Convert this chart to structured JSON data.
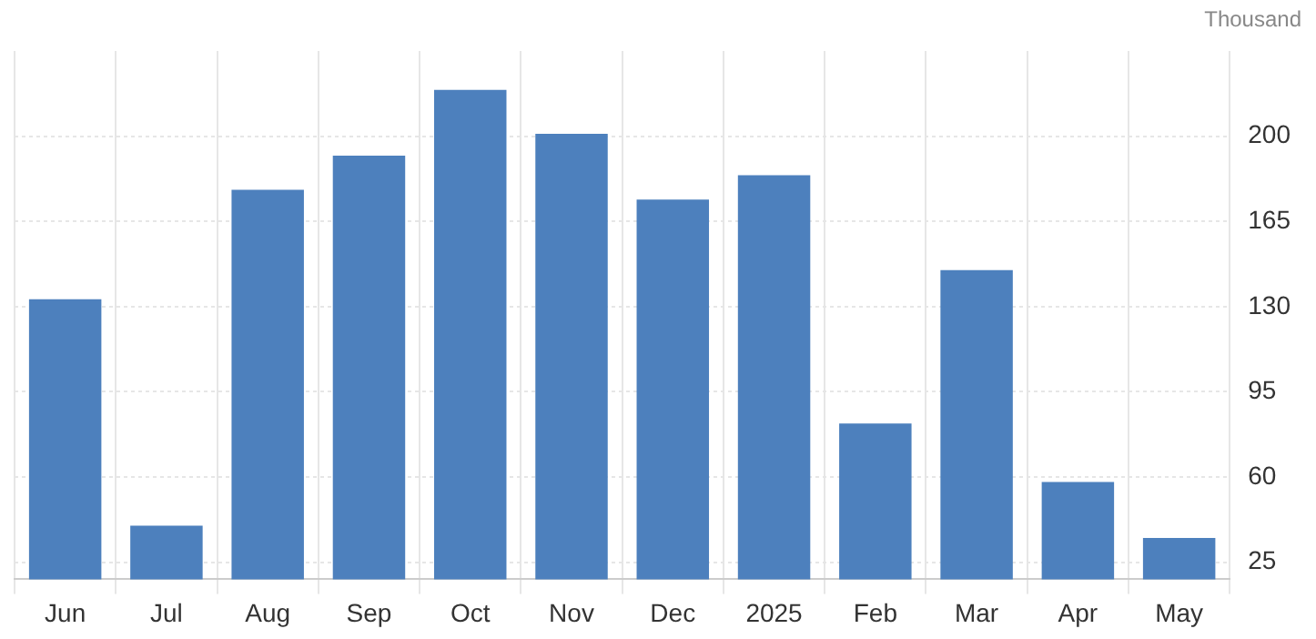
{
  "chart_data": {
    "type": "bar",
    "ylabel": "Thousand",
    "categories": [
      "Jun",
      "Jul",
      "Aug",
      "Sep",
      "Oct",
      "Nov",
      "Dec",
      "2025",
      "Feb",
      "Mar",
      "Apr",
      "May"
    ],
    "values": [
      133,
      40,
      178,
      192,
      219,
      201,
      174,
      184,
      82,
      145,
      58,
      35
    ],
    "color": "#4d80bd",
    "ylim": [
      18,
      235
    ],
    "yticks": [
      25,
      60,
      95,
      130,
      165,
      200
    ],
    "grid": true,
    "legend": false
  }
}
